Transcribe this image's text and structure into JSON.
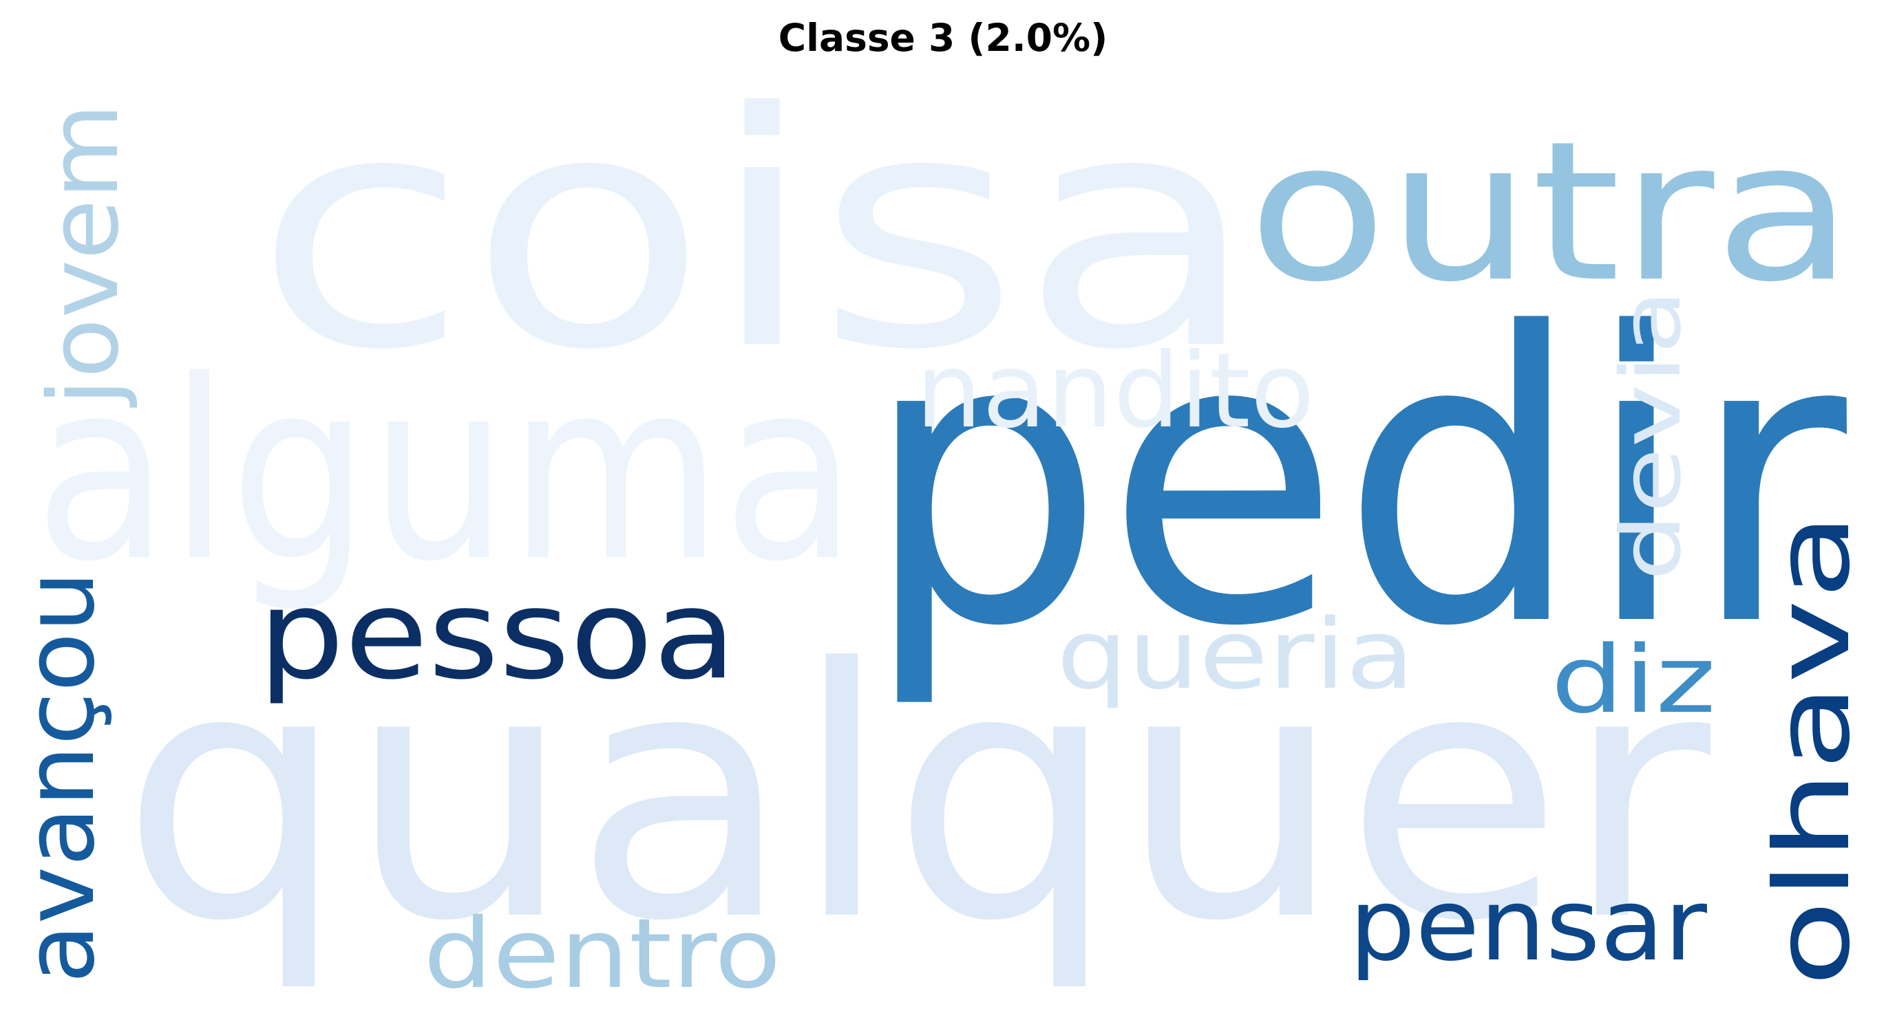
{
  "title": "Classe 3 (2.0%)",
  "words": [
    {
      "text": "coisa",
      "color": "#e9f2fa",
      "orientation": "horizontal"
    },
    {
      "text": "qualquer",
      "color": "#dde9f6",
      "orientation": "horizontal"
    },
    {
      "text": "alguma",
      "color": "#edf4fb",
      "orientation": "horizontal"
    },
    {
      "text": "pedir",
      "color": "#2b7bba",
      "orientation": "horizontal"
    },
    {
      "text": "outra",
      "color": "#94c4df",
      "orientation": "horizontal"
    },
    {
      "text": "pessoa",
      "color": "#0b2f64",
      "orientation": "horizontal"
    },
    {
      "text": "olhava",
      "color": "#083e82",
      "orientation": "vertical"
    },
    {
      "text": "avançou",
      "color": "#155a9d",
      "orientation": "vertical"
    },
    {
      "text": "jovem",
      "color": "#b2d2e8",
      "orientation": "vertical"
    },
    {
      "text": "nandito",
      "color": "#e8f1fa",
      "orientation": "horizontal"
    },
    {
      "text": "devia",
      "color": "#dbe9f6",
      "orientation": "vertical"
    },
    {
      "text": "queria",
      "color": "#d5e5f4",
      "orientation": "horizontal"
    },
    {
      "text": "diz",
      "color": "#3f8dc6",
      "orientation": "horizontal"
    },
    {
      "text": "pensar",
      "color": "#0d4689",
      "orientation": "horizontal"
    },
    {
      "text": "dentro",
      "color": "#a8cde4",
      "orientation": "horizontal"
    }
  ]
}
